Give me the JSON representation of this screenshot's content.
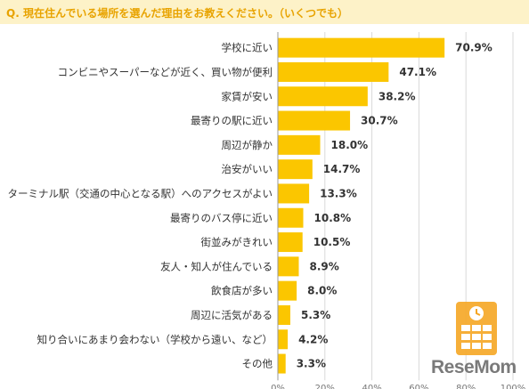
{
  "title": "Q. 現在住んでいる場所を選んだ理由をお教えください。（いくつでも）",
  "colors": {
    "bar": "#fbc600",
    "title_bg": "#fdf2c8",
    "title_text": "#e8a300",
    "grid": "#d9d9d9"
  },
  "watermark": {
    "text": "ReseMom",
    "icon": "calendar-grid-logo-icon"
  },
  "chart_data": {
    "type": "bar",
    "orientation": "horizontal",
    "categories": [
      "学校に近い",
      "コンビニやスーパーなどが近く、買い物が便利",
      "家賃が安い",
      "最寄りの駅に近い",
      "周辺が静か",
      "治安がいい",
      "ターミナル駅（交通の中心となる駅）へのアクセスがよい",
      "最寄りのバス停に近い",
      "街並みがきれい",
      "友人・知人が住んでいる",
      "飲食店が多い",
      "周辺に活気がある",
      "知り合いにあまり会わない（学校から遠い、など）",
      "その他"
    ],
    "values": [
      70.9,
      47.1,
      38.2,
      30.7,
      18.0,
      14.7,
      13.3,
      10.8,
      10.5,
      8.9,
      8.0,
      5.3,
      4.2,
      3.3
    ],
    "value_labels": [
      "70.9%",
      "47.1%",
      "38.2%",
      "30.7%",
      "18.0%",
      "14.7%",
      "13.3%",
      "10.8%",
      "10.5%",
      "8.9%",
      "8.0%",
      "5.3%",
      "4.2%",
      "3.3%"
    ],
    "xlim": [
      0,
      100
    ],
    "xticks": [
      "0%",
      "20%",
      "40%",
      "60%",
      "80%",
      "100%"
    ],
    "grid": true
  }
}
